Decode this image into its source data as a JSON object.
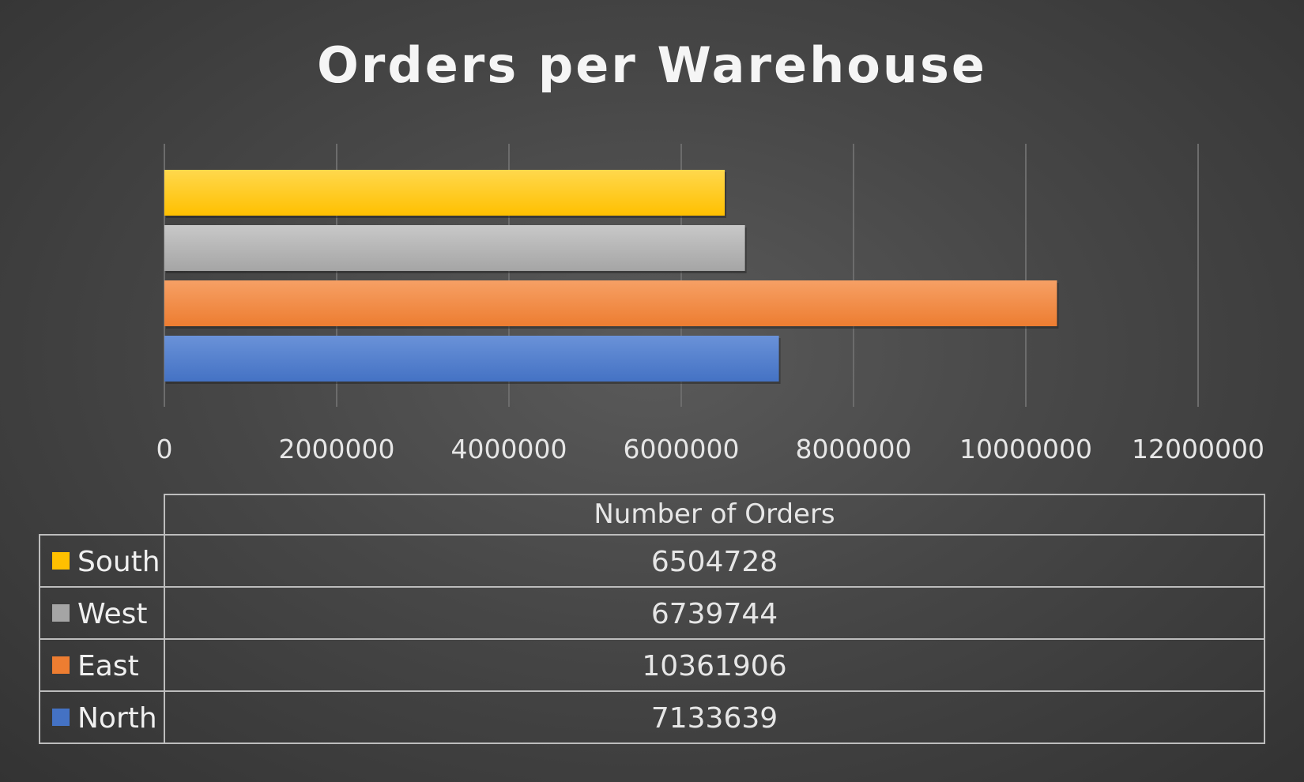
{
  "chart_data": {
    "type": "bar",
    "orientation": "horizontal",
    "title": "Orders per Warehouse",
    "categories": [
      "South",
      "West",
      "East",
      "North"
    ],
    "series": [
      {
        "name": "Number of Orders",
        "values": [
          6504728,
          6739744,
          10361906,
          7133639
        ]
      }
    ],
    "xlim": [
      0,
      12000000
    ],
    "ticks": [
      0,
      2000000,
      4000000,
      6000000,
      8000000,
      10000000,
      12000000
    ],
    "tick_labels": [
      "0",
      "2000000",
      "4000000",
      "6000000",
      "8000000",
      "10000000",
      "12000000"
    ],
    "grid": true,
    "legend": "data-table-below",
    "data_table": {
      "header": "Number of Orders",
      "rows": [
        {
          "category": "South",
          "value": "6504728"
        },
        {
          "category": "West",
          "value": "6739744"
        },
        {
          "category": "East",
          "value": "10361906"
        },
        {
          "category": "North",
          "value": "7133639"
        }
      ]
    },
    "colors": {
      "South": "#ffc000",
      "West": "#a5a5a5",
      "East": "#ed7d31",
      "North": "#4472c4"
    },
    "color_highlights": {
      "South": "#ffd84d",
      "West": "#c8c8c8",
      "East": "#f6a065",
      "North": "#6a92d8"
    }
  }
}
